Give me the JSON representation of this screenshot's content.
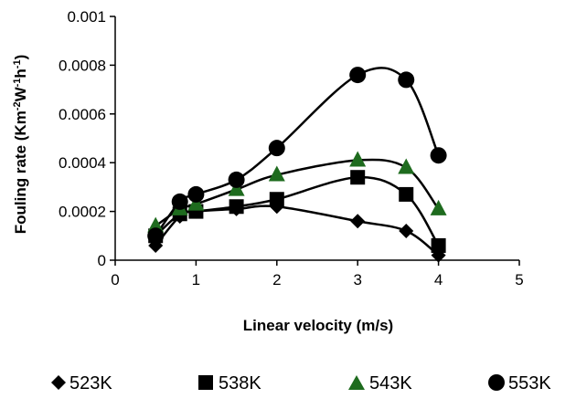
{
  "chart_data": {
    "type": "scatter",
    "xlabel": "Linear velocity (m/s)",
    "ylabel": {
      "parts": [
        "Fouling rate (Km",
        "-2",
        "W",
        "-1",
        "h",
        "-1",
        ")"
      ],
      "shown_as": "Fouling rate (Km⁻²W⁻¹h⁻¹)"
    },
    "xlim": [
      0,
      5
    ],
    "ylim": [
      0,
      0.001
    ],
    "x_ticks": [
      "0",
      "1",
      "2",
      "3",
      "4",
      "5"
    ],
    "y_ticks": [
      "0",
      "0.0002",
      "0.0004",
      "0.0006",
      "0.0008",
      "0.001"
    ],
    "grid": false,
    "legend_position": "bottom",
    "series": [
      {
        "name": "523K",
        "marker": "diamond",
        "color": "#000000",
        "x": [
          0.5,
          0.8,
          1.0,
          1.5,
          2.0,
          3.0,
          3.6,
          4.0
        ],
        "y": [
          6e-05,
          0.00018,
          0.0002,
          0.00021,
          0.00022,
          0.00016,
          0.00012,
          2e-05
        ]
      },
      {
        "name": "538K",
        "marker": "square",
        "color": "#000000",
        "x": [
          0.5,
          0.8,
          1.0,
          1.5,
          2.0,
          3.0,
          3.6,
          4.0
        ],
        "y": [
          0.0001,
          0.00019,
          0.0002,
          0.00022,
          0.00025,
          0.00034,
          0.00027,
          6e-05
        ]
      },
      {
        "name": "543K",
        "marker": "triangle",
        "color": "#1e6b1e",
        "x": [
          0.5,
          0.8,
          1.0,
          1.5,
          2.0,
          3.0,
          3.6,
          4.0
        ],
        "y": [
          0.00014,
          0.00021,
          0.00023,
          0.00029,
          0.00035,
          0.00041,
          0.00038,
          0.00021
        ]
      },
      {
        "name": "553K",
        "marker": "circle",
        "color": "#000000",
        "x": [
          0.5,
          0.8,
          1.0,
          1.5,
          2.0,
          3.0,
          3.6,
          4.0
        ],
        "y": [
          0.0001,
          0.00024,
          0.00027,
          0.00033,
          0.00046,
          0.00076,
          0.00074,
          0.00043
        ]
      }
    ]
  }
}
